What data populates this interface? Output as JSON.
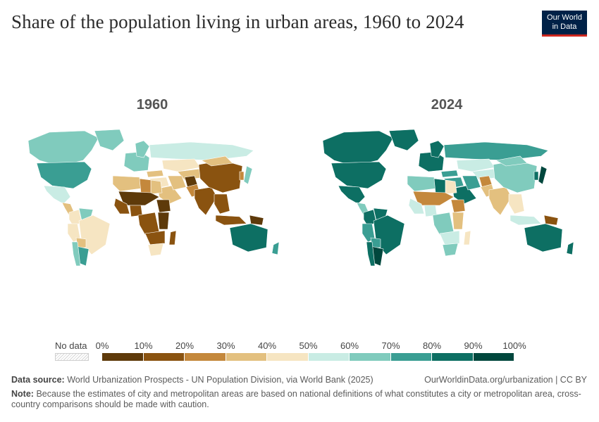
{
  "title": "Share of the population living in urban areas, 1960 to 2024",
  "logo": {
    "line1": "Our World",
    "line2": "in Data"
  },
  "maps": [
    {
      "year_label": "1960",
      "regions": [
        {
          "name": "Canada",
          "share": 69.1
        },
        {
          "name": "United States",
          "share": 70.0
        },
        {
          "name": "Greenland",
          "share": 65
        },
        {
          "name": "Mexico",
          "share": 50.8
        },
        {
          "name": "Central America",
          "share": 35
        },
        {
          "name": "Colombia",
          "share": 45
        },
        {
          "name": "Venezuela",
          "share": 61
        },
        {
          "name": "Brazil",
          "share": 46
        },
        {
          "name": "Peru",
          "share": 47
        },
        {
          "name": "Bolivia",
          "share": 37
        },
        {
          "name": "Argentina",
          "share": 74
        },
        {
          "name": "Chile",
          "share": 68
        },
        {
          "name": "Western Europe",
          "share": 62
        },
        {
          "name": "Scandinavia",
          "share": 60
        },
        {
          "name": "Russia",
          "share": 54
        },
        {
          "name": "Kazakhstan",
          "share": 44
        },
        {
          "name": "Central Asia",
          "share": 35
        },
        {
          "name": "Turkey",
          "share": 32
        },
        {
          "name": "Middle East",
          "share": 40
        },
        {
          "name": "Arabian Peninsula",
          "share": 30
        },
        {
          "name": "Iran",
          "share": 34
        },
        {
          "name": "Afghanistan",
          "share": 8
        },
        {
          "name": "Pakistan",
          "share": 22
        },
        {
          "name": "India",
          "share": 18
        },
        {
          "name": "China",
          "share": 16
        },
        {
          "name": "Mongolia",
          "share": 36
        },
        {
          "name": "Japan",
          "share": 63
        },
        {
          "name": "Korea",
          "share": 28
        },
        {
          "name": "Southeast Asia",
          "share": 15
        },
        {
          "name": "Indonesia",
          "share": 15
        },
        {
          "name": "Papua New Guinea",
          "share": 3
        },
        {
          "name": "Australia",
          "share": 82
        },
        {
          "name": "New Zealand",
          "share": 76
        },
        {
          "name": "North Africa",
          "share": 32
        },
        {
          "name": "Egypt",
          "share": 38
        },
        {
          "name": "Libya",
          "share": 27
        },
        {
          "name": "Sahel",
          "share": 9
        },
        {
          "name": "Nigeria",
          "share": 15
        },
        {
          "name": "West Africa",
          "share": 12
        },
        {
          "name": "Central Africa",
          "share": 18
        },
        {
          "name": "Ethiopia",
          "share": 6
        },
        {
          "name": "East Africa",
          "share": 6
        },
        {
          "name": "Southern Africa",
          "share": 14
        },
        {
          "name": "South Africa",
          "share": 47
        },
        {
          "name": "Madagascar",
          "share": 11
        }
      ]
    },
    {
      "year_label": "2024",
      "regions": [
        {
          "name": "Canada",
          "share": 82
        },
        {
          "name": "United States",
          "share": 83
        },
        {
          "name": "Greenland",
          "share": 87
        },
        {
          "name": "Mexico",
          "share": 81
        },
        {
          "name": "Central America",
          "share": 62
        },
        {
          "name": "Colombia",
          "share": 82
        },
        {
          "name": "Venezuela",
          "share": 88
        },
        {
          "name": "Brazil",
          "share": 88
        },
        {
          "name": "Peru",
          "share": 79
        },
        {
          "name": "Bolivia",
          "share": 71
        },
        {
          "name": "Argentina",
          "share": 92
        },
        {
          "name": "Chile",
          "share": 88
        },
        {
          "name": "Western Europe",
          "share": 80
        },
        {
          "name": "Scandinavia",
          "share": 86
        },
        {
          "name": "Russia",
          "share": 75
        },
        {
          "name": "Kazakhstan",
          "share": 58
        },
        {
          "name": "Central Asia",
          "share": 50
        },
        {
          "name": "Turkey",
          "share": 77
        },
        {
          "name": "Middle East",
          "share": 75
        },
        {
          "name": "Arabian Peninsula",
          "share": 85
        },
        {
          "name": "Iran",
          "share": 78
        },
        {
          "name": "Afghanistan",
          "share": 27
        },
        {
          "name": "Pakistan",
          "share": 39
        },
        {
          "name": "India",
          "share": 37
        },
        {
          "name": "China",
          "share": 66
        },
        {
          "name": "Mongolia",
          "share": 69
        },
        {
          "name": "Japan",
          "share": 92
        },
        {
          "name": "Korea",
          "share": 81
        },
        {
          "name": "Southeast Asia",
          "share": 48
        },
        {
          "name": "Indonesia",
          "share": 59
        },
        {
          "name": "Papua New Guinea",
          "share": 14
        },
        {
          "name": "Australia",
          "share": 87
        },
        {
          "name": "New Zealand",
          "share": 87
        },
        {
          "name": "North Africa",
          "share": 65
        },
        {
          "name": "Egypt",
          "share": 43
        },
        {
          "name": "Libya",
          "share": 82
        },
        {
          "name": "Sahel",
          "share": 28
        },
        {
          "name": "Nigeria",
          "share": 55
        },
        {
          "name": "West Africa",
          "share": 50
        },
        {
          "name": "Central Africa",
          "share": 60
        },
        {
          "name": "Ethiopia",
          "share": 23
        },
        {
          "name": "East Africa",
          "share": 30
        },
        {
          "name": "Southern Africa",
          "share": 50
        },
        {
          "name": "South Africa",
          "share": 69
        },
        {
          "name": "Madagascar",
          "share": 41
        }
      ]
    }
  ],
  "legend": {
    "no_data_label": "No data",
    "ticks": [
      "0%",
      "10%",
      "20%",
      "30%",
      "40%",
      "50%",
      "60%",
      "70%",
      "80%",
      "90%",
      "100%"
    ],
    "colors": [
      "#5e3a0a",
      "#8a5310",
      "#c4883c",
      "#e3c07f",
      "#f6e5c2",
      "#c9ece4",
      "#80cbbd",
      "#3a9e93",
      "#0d6f63",
      "#00473d"
    ]
  },
  "footer": {
    "source_label": "Data source:",
    "source_text": "World Urbanization Prospects - UN Population Division, via World Bank (2025)",
    "credit": "OurWorldinData.org/urbanization | CC BY",
    "note_label": "Note:",
    "note_text": "Because the estimates of city and metropolitan areas are based on national definitions of what constitutes a city or metropolitan area, cross-country comparisons should be made with caution."
  }
}
